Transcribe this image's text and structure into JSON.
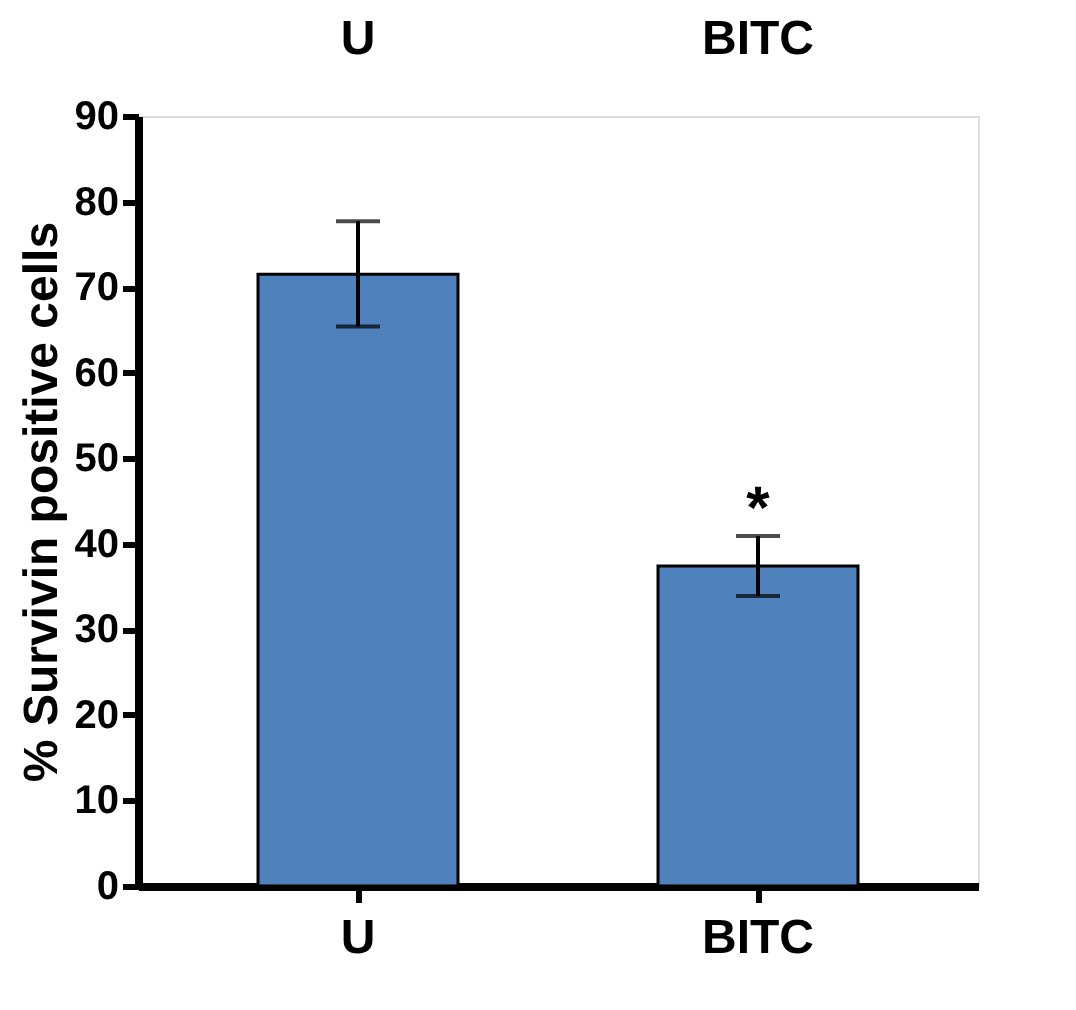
{
  "chart_data": {
    "type": "bar",
    "ylabel": "% Survivin positive cells",
    "categories": [
      "U",
      "BITC"
    ],
    "values": [
      71.5,
      37.4
    ],
    "errors": [
      [
        65.4,
        77.7
      ],
      [
        33.9,
        40.9
      ]
    ],
    "color": "#4f81bd",
    "ylim": [
      0,
      90
    ],
    "yticks": [
      0,
      10,
      20,
      30,
      40,
      50,
      60,
      70,
      80,
      90
    ],
    "grid": false,
    "annotations": [
      {
        "text": "U",
        "x": "U"
      },
      {
        "text": "BITC",
        "x": "BITC"
      },
      {
        "text": "*",
        "x": "BITC",
        "y": 40.9
      }
    ]
  }
}
